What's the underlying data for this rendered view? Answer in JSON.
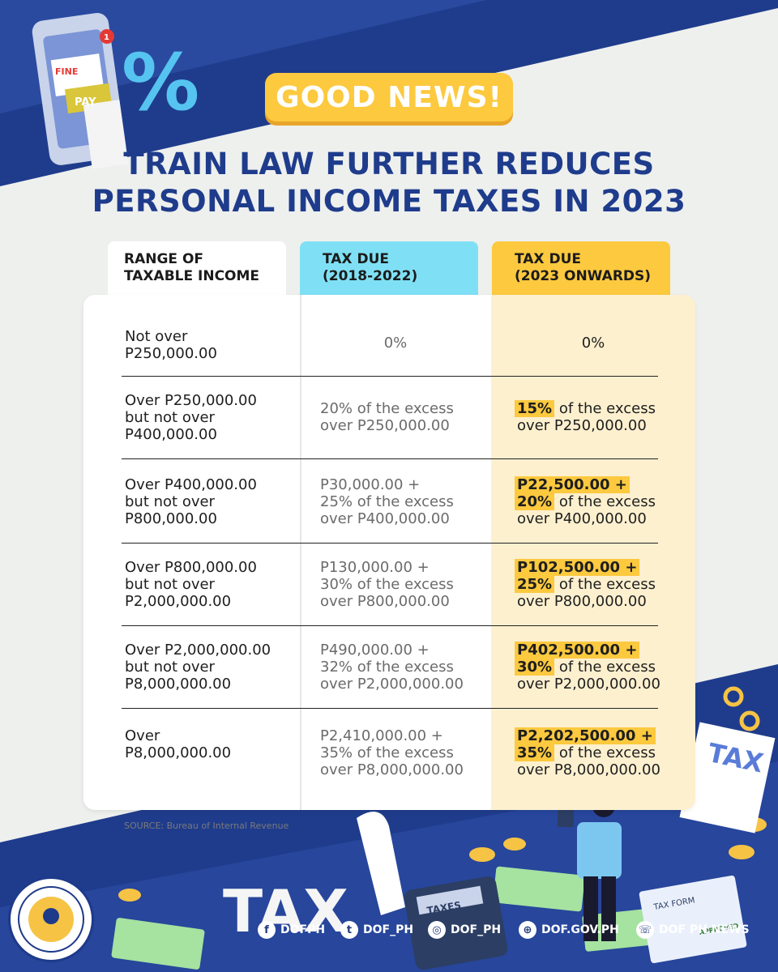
{
  "badge": "GOOD NEWS!",
  "title": {
    "line1": "TRAIN LAW FURTHER REDUCES",
    "line2": "PERSONAL INCOME TAXES IN 2023"
  },
  "headers": {
    "col1": {
      "line1": "RANGE OF",
      "line2": "TAXABLE INCOME"
    },
    "col2": {
      "line1": "TAX DUE",
      "line2": "(2018-2022)"
    },
    "col3": {
      "line1": "TAX DUE",
      "line2": "(2023 ONWARDS)"
    }
  },
  "rows": [
    {
      "range": [
        "Not over",
        "P250,000.00"
      ],
      "old": [
        "0%"
      ],
      "new_plain": "0%"
    },
    {
      "range": [
        "Over P250,000.00",
        "but not over",
        "P400,000.00"
      ],
      "old": [
        "20% of the excess",
        "over P250,000.00"
      ],
      "new_hl1": "15%",
      "new_rest1": " of the excess",
      "new_line2": "over P250,000.00"
    },
    {
      "range": [
        "Over P400,000.00",
        "but not over",
        "P800,000.00"
      ],
      "old": [
        "P30,000.00 +",
        "25% of the excess",
        "over P400,000.00"
      ],
      "new_base": "P22,500.00 +",
      "new_hl1": "20%",
      "new_rest1": " of the excess",
      "new_line2": "over P400,000.00"
    },
    {
      "range": [
        "Over P800,000.00",
        "but not over",
        "P2,000,000.00"
      ],
      "old": [
        "P130,000.00 +",
        "30% of the excess",
        "over P800,000.00"
      ],
      "new_base": "P102,500.00 +",
      "new_hl1": "25%",
      "new_rest1": " of the excess",
      "new_line2": "over P800,000.00"
    },
    {
      "range": [
        "Over P2,000,000.00",
        "but not over",
        "P8,000,000.00"
      ],
      "old": [
        "P490,000.00 +",
        "32% of the excess",
        "over P2,000,000.00"
      ],
      "new_base": "P402,500.00 +",
      "new_hl1": "30%",
      "new_rest1": " of the excess",
      "new_line2": "over P2,000,000.00"
    },
    {
      "range": [
        "Over",
        "P8,000,000.00"
      ],
      "old": [
        "P2,410,000.00 +",
        "35% of the excess",
        "over P8,000,000.00"
      ],
      "new_base": "P2,202,500.00 +",
      "new_hl1": "35%",
      "new_rest1": " of the excess",
      "new_line2": "over P8,000,000.00"
    }
  ],
  "source": "SOURCE: Bureau of Internal Revenue",
  "illustration": {
    "phone_fine": "FINE",
    "phone_pay": "PAY",
    "percent": "%",
    "notification_count": "1",
    "tax_word": "TAX",
    "calculator_label": "TAXES",
    "form_label": "TAX FORM",
    "approved_stamp": "APPROVED",
    "paper_tax": "TAX"
  },
  "social": [
    {
      "icon": "facebook-icon",
      "glyph": "f",
      "label": "DOFPH"
    },
    {
      "icon": "twitter-icon",
      "glyph": "t",
      "label": "DOF_PH"
    },
    {
      "icon": "instagram-icon",
      "glyph": "◎",
      "label": "DOF_PH"
    },
    {
      "icon": "globe-icon",
      "glyph": "⊕",
      "label": "DOF.GOV.PH"
    },
    {
      "icon": "viber-icon",
      "glyph": "☏",
      "label": "DOF PH NEWS"
    }
  ],
  "colors": {
    "navy": "#1f3c8c",
    "yellow": "#fcc93f",
    "cyan": "#7fe0f5",
    "cream": "#fdf0cf"
  }
}
